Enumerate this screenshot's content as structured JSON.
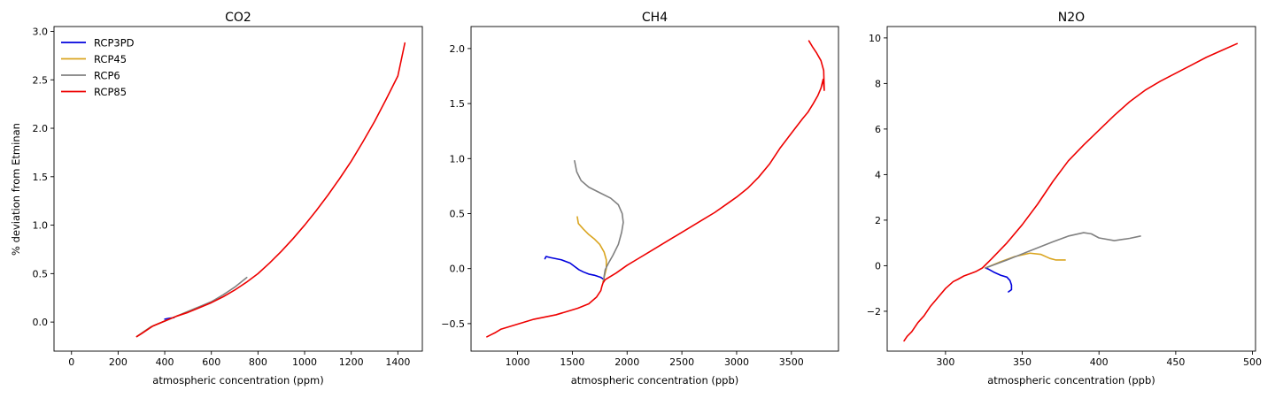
{
  "figure": {
    "ylabel": "% deviation from Etminan"
  },
  "legend": {
    "placement": "top-left",
    "entries": [
      {
        "name": "RCP3PD",
        "color": "#0000dd"
      },
      {
        "name": "RCP45",
        "color": "#daa520"
      },
      {
        "name": "RCP6",
        "color": "#808080"
      },
      {
        "name": "RCP85",
        "color": "#ee0000"
      }
    ]
  },
  "chart_data": [
    {
      "type": "line",
      "title": "CO2",
      "xlabel": "atmospheric concentration (ppm)",
      "ylabel": "% deviation from Etminan",
      "xlim": [
        -75,
        1505
      ],
      "ylim": [
        -0.3,
        3.05
      ],
      "xticks": [
        0,
        200,
        400,
        600,
        800,
        1000,
        1200,
        1400
      ],
      "yticks": [
        0.0,
        0.5,
        1.0,
        1.5,
        2.0,
        2.5,
        3.0
      ],
      "ytick_decimals": 1,
      "grid": false,
      "series": [
        {
          "name": "RCP3PD",
          "color": "#0000dd",
          "x": [
            400,
            420,
            440
          ],
          "y": [
            0.03,
            0.04,
            0.045
          ]
        },
        {
          "name": "RCP45",
          "color": "#daa520",
          "x": [
            280,
            340,
            400,
            450,
            500,
            540
          ],
          "y": [
            -0.15,
            -0.05,
            0.01,
            0.06,
            0.11,
            0.15
          ]
        },
        {
          "name": "RCP6",
          "color": "#808080",
          "x": [
            280,
            340,
            400,
            450,
            500,
            550,
            600,
            650,
            700,
            752
          ],
          "y": [
            -0.15,
            -0.05,
            0.01,
            0.06,
            0.11,
            0.16,
            0.21,
            0.28,
            0.36,
            0.46
          ]
        },
        {
          "name": "RCP85",
          "color": "#ee0000",
          "x": [
            280,
            300,
            350,
            400,
            450,
            500,
            550,
            600,
            650,
            700,
            750,
            800,
            850,
            900,
            950,
            1000,
            1050,
            1100,
            1150,
            1200,
            1250,
            1300,
            1350,
            1400,
            1430
          ],
          "y": [
            -0.15,
            -0.12,
            -0.04,
            0.01,
            0.06,
            0.1,
            0.15,
            0.2,
            0.26,
            0.33,
            0.41,
            0.5,
            0.61,
            0.73,
            0.86,
            1.0,
            1.15,
            1.31,
            1.48,
            1.66,
            1.86,
            2.07,
            2.3,
            2.54,
            2.88
          ]
        }
      ]
    },
    {
      "type": "line",
      "title": "CH4",
      "xlabel": "atmospheric concentration (ppb)",
      "ylabel": "",
      "xlim": [
        575,
        3930
      ],
      "ylim": [
        -0.75,
        2.2
      ],
      "xticks": [
        1000,
        1500,
        2000,
        2500,
        3000,
        3500
      ],
      "yticks": [
        -0.5,
        0.0,
        0.5,
        1.0,
        1.5,
        2.0
      ],
      "ytick_decimals": 1,
      "grid": false,
      "series": [
        {
          "name": "RCP3PD",
          "color": "#0000dd",
          "x": [
            1250,
            1260,
            1300,
            1400,
            1480,
            1520,
            1560,
            1600,
            1650,
            1700,
            1760,
            1790
          ],
          "y": [
            0.09,
            0.11,
            0.1,
            0.08,
            0.05,
            0.02,
            -0.01,
            -0.03,
            -0.05,
            -0.06,
            -0.08,
            -0.1
          ]
        },
        {
          "name": "RCP45",
          "color": "#daa520",
          "x": [
            1545,
            1555,
            1600,
            1650,
            1700,
            1750,
            1790,
            1810,
            1810,
            1795,
            1785,
            1780
          ],
          "y": [
            0.47,
            0.41,
            0.36,
            0.31,
            0.27,
            0.22,
            0.15,
            0.08,
            0.0,
            -0.06,
            -0.1,
            -0.12
          ]
        },
        {
          "name": "RCP6",
          "color": "#808080",
          "x": [
            1520,
            1540,
            1580,
            1650,
            1750,
            1850,
            1920,
            1955,
            1965,
            1950,
            1920,
            1870,
            1830,
            1800,
            1790,
            1785
          ],
          "y": [
            0.98,
            0.88,
            0.8,
            0.74,
            0.69,
            0.64,
            0.58,
            0.5,
            0.42,
            0.33,
            0.22,
            0.12,
            0.05,
            -0.01,
            -0.07,
            -0.12
          ]
        },
        {
          "name": "RCP85",
          "color": "#ee0000",
          "x": [
            720,
            760,
            800,
            850,
            950,
            1050,
            1150,
            1250,
            1350,
            1450,
            1550,
            1650,
            1720,
            1760,
            1770,
            1780,
            1800,
            1900,
            2000,
            2100,
            2200,
            2300,
            2400,
            2500,
            2600,
            2700,
            2800,
            2900,
            3000,
            3100,
            3200,
            3300,
            3400,
            3500,
            3600,
            3650,
            3700,
            3740,
            3770,
            3790,
            3800,
            3795,
            3770,
            3730,
            3690,
            3660
          ],
          "y": [
            -0.62,
            -0.6,
            -0.58,
            -0.55,
            -0.52,
            -0.49,
            -0.46,
            -0.44,
            -0.42,
            -0.39,
            -0.36,
            -0.32,
            -0.26,
            -0.2,
            -0.16,
            -0.13,
            -0.1,
            -0.04,
            0.03,
            0.09,
            0.15,
            0.21,
            0.27,
            0.33,
            0.39,
            0.45,
            0.51,
            0.58,
            0.65,
            0.73,
            0.83,
            0.95,
            1.1,
            1.23,
            1.36,
            1.42,
            1.5,
            1.57,
            1.64,
            1.72,
            1.62,
            1.8,
            1.89,
            1.96,
            2.02,
            2.07
          ]
        }
      ]
    },
    {
      "type": "line",
      "title": "N2O",
      "xlabel": "atmospheric concentration (ppb)",
      "ylabel": "",
      "xlim": [
        262,
        502
      ],
      "ylim": [
        -3.75,
        10.5
      ],
      "xticks": [
        300,
        350,
        400,
        450,
        500
      ],
      "yticks": [
        -2,
        0,
        2,
        4,
        6,
        8,
        10
      ],
      "ytick_decimals": 0,
      "grid": false,
      "series": [
        {
          "name": "RCP3PD",
          "color": "#0000dd",
          "x": [
            326,
            328,
            332,
            336,
            340,
            342,
            343,
            343,
            341
          ],
          "y": [
            -0.1,
            -0.15,
            -0.3,
            -0.42,
            -0.5,
            -0.65,
            -0.85,
            -1.05,
            -1.15
          ]
        },
        {
          "name": "RCP45",
          "color": "#daa520",
          "x": [
            326,
            335,
            345,
            355,
            362,
            368,
            372,
            378
          ],
          "y": [
            -0.1,
            0.15,
            0.4,
            0.55,
            0.5,
            0.32,
            0.25,
            0.25
          ]
        },
        {
          "name": "RCP6",
          "color": "#808080",
          "x": [
            326,
            340,
            355,
            370,
            380,
            390,
            395,
            400,
            410,
            420,
            427
          ],
          "y": [
            -0.1,
            0.25,
            0.65,
            1.05,
            1.3,
            1.45,
            1.4,
            1.22,
            1.1,
            1.2,
            1.3
          ]
        },
        {
          "name": "RCP85",
          "color": "#ee0000",
          "x": [
            273,
            275,
            278,
            282,
            286,
            290,
            295,
            300,
            305,
            308,
            312,
            316,
            320,
            324,
            330,
            340,
            350,
            360,
            370,
            380,
            390,
            400,
            410,
            420,
            430,
            440,
            450,
            460,
            470,
            480,
            490
          ],
          "y": [
            -3.3,
            -3.1,
            -2.9,
            -2.5,
            -2.2,
            -1.8,
            -1.4,
            -1.0,
            -0.7,
            -0.6,
            -0.45,
            -0.35,
            -0.25,
            -0.1,
            0.3,
            1.0,
            1.8,
            2.7,
            3.7,
            4.6,
            5.3,
            5.95,
            6.6,
            7.2,
            7.7,
            8.1,
            8.45,
            8.8,
            9.15,
            9.45,
            9.75
          ]
        }
      ]
    }
  ]
}
